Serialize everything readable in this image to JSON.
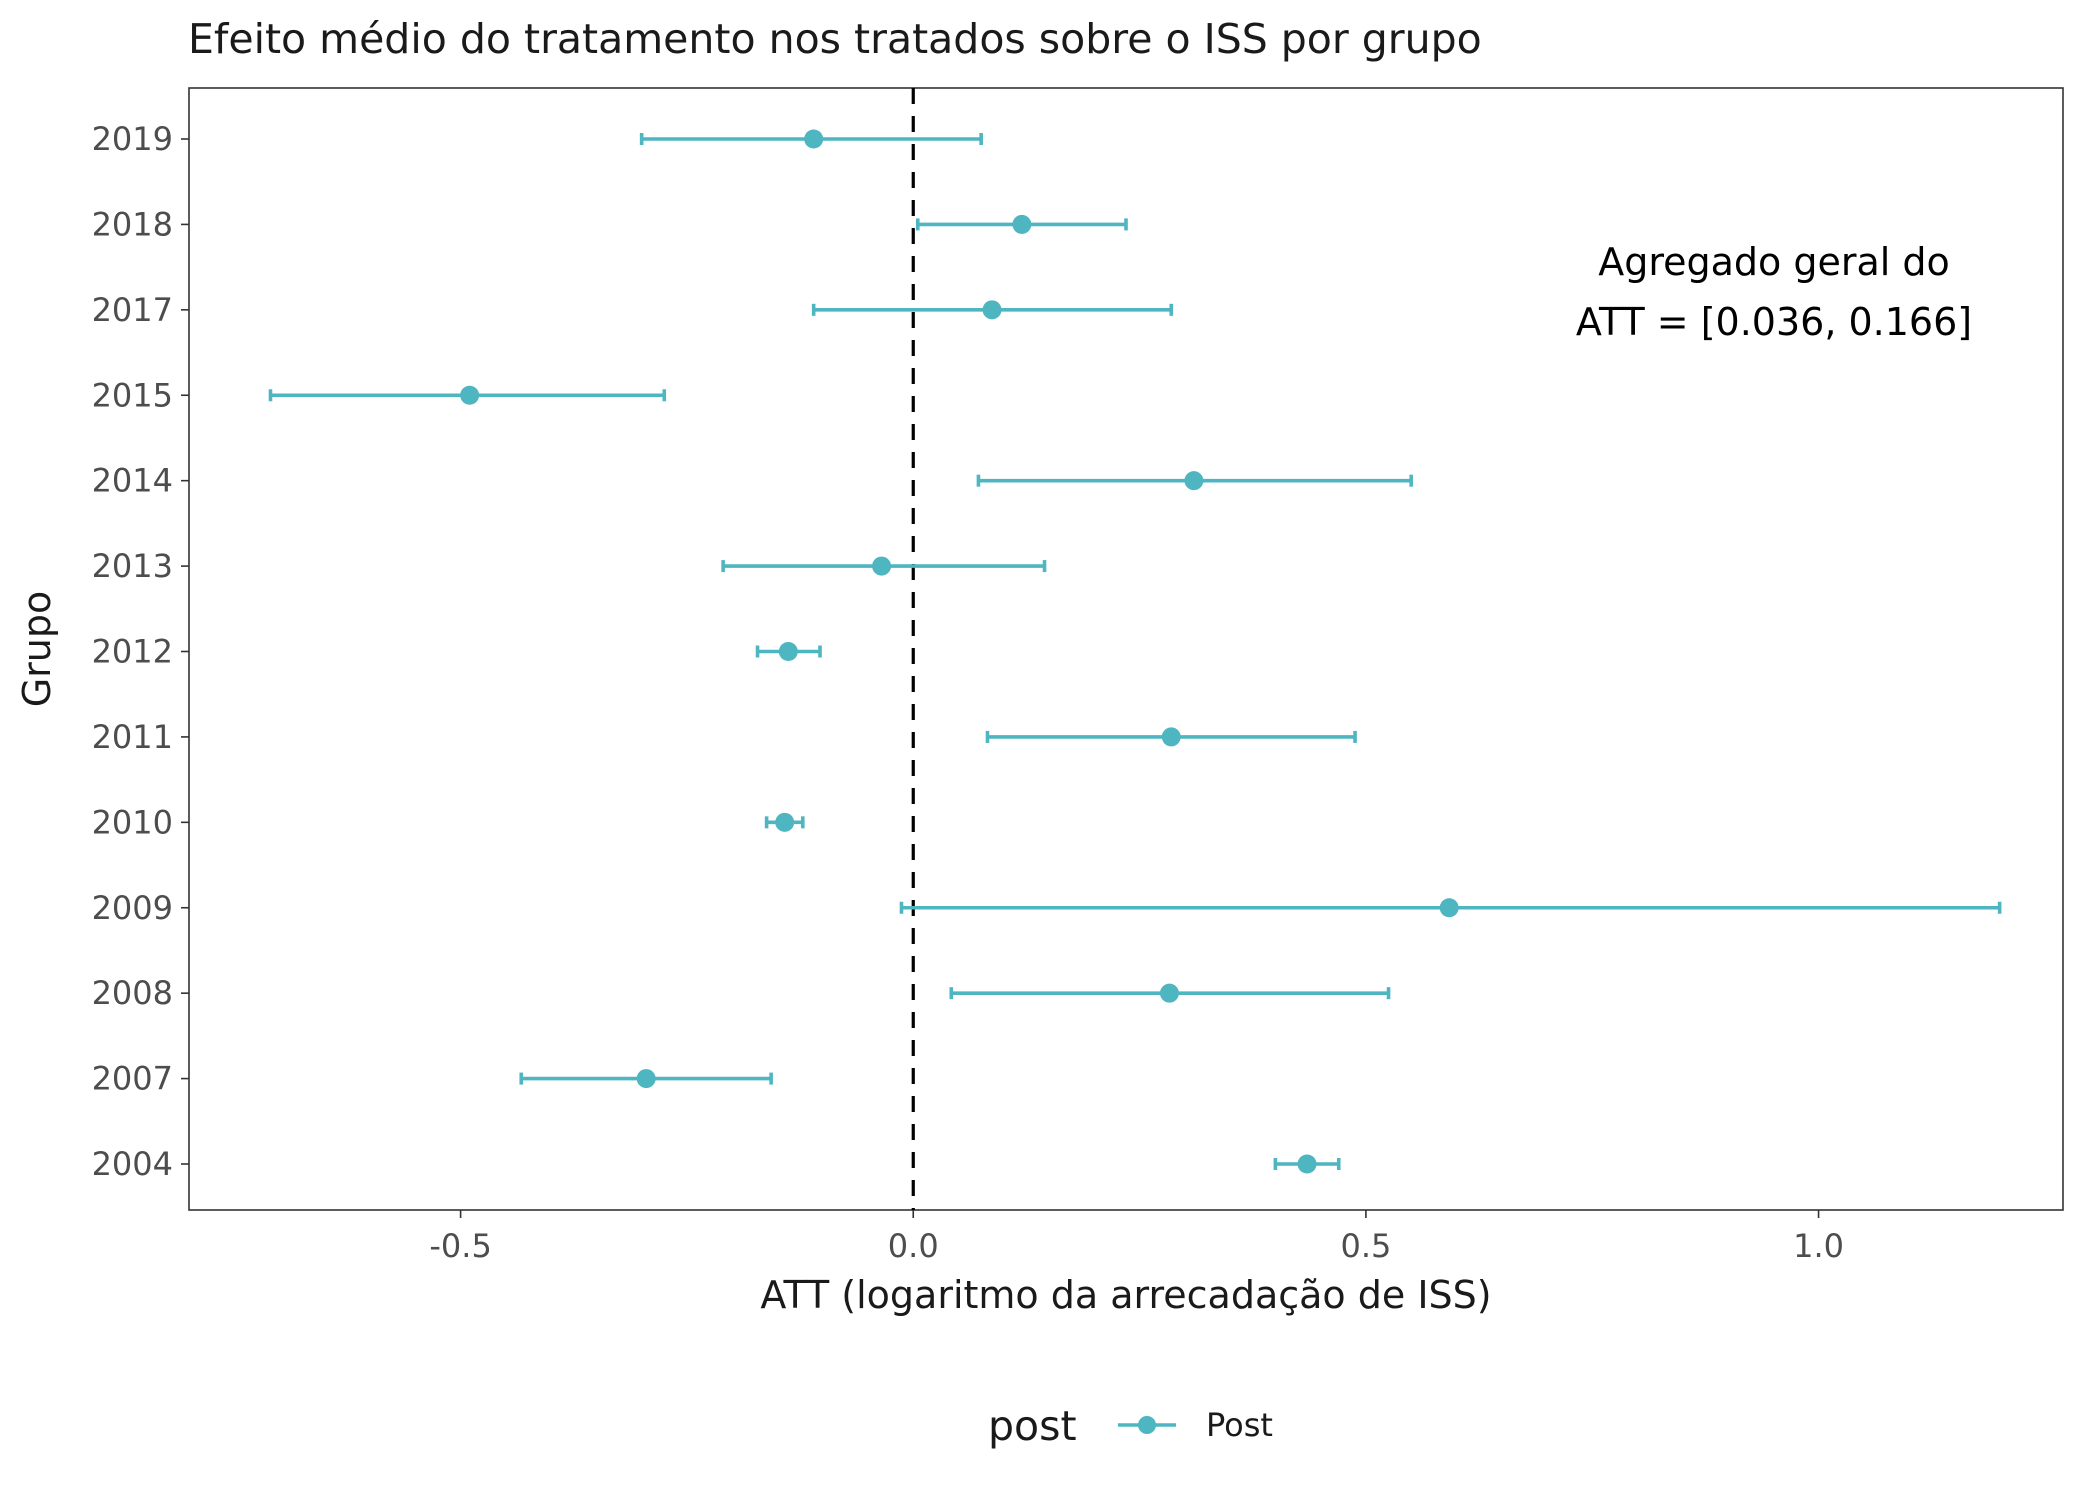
{
  "chart_data": {
    "type": "scatter",
    "title": "Efeito médio do tratamento nos tratados sobre o ISS por grupo",
    "xlabel": "ATT (logaritmo da arrecadação de ISS)",
    "ylabel": "Grupo",
    "xlim": [
      -0.8,
      1.27
    ],
    "x_ticks": [
      -0.5,
      0.0,
      0.5,
      1.0
    ],
    "x_tick_labels": [
      "-0.5",
      "0.0",
      "0.5",
      "1.0"
    ],
    "grid": false,
    "reference_line": {
      "x": 0,
      "style": "dashed",
      "color": "#000000"
    },
    "annotation": {
      "line1": "Agregado geral do",
      "line2": "ATT =  [0.036, 0.166]"
    },
    "legend": {
      "title": "post",
      "placement": "bottom",
      "entries": [
        "Post"
      ]
    },
    "series": [
      {
        "name": "Post",
        "color": "#4DB6C0",
        "points": [
          {
            "group": "2019",
            "att": -0.11,
            "lower": -0.3,
            "upper": 0.075
          },
          {
            "group": "2018",
            "att": 0.12,
            "lower": 0.005,
            "upper": 0.235
          },
          {
            "group": "2017",
            "att": 0.087,
            "lower": -0.11,
            "upper": 0.285
          },
          {
            "group": "2015",
            "att": -0.49,
            "lower": -0.71,
            "upper": -0.275
          },
          {
            "group": "2014",
            "att": 0.31,
            "lower": 0.072,
            "upper": 0.55
          },
          {
            "group": "2013",
            "att": -0.035,
            "lower": -0.21,
            "upper": 0.145
          },
          {
            "group": "2012",
            "att": -0.138,
            "lower": -0.172,
            "upper": -0.103
          },
          {
            "group": "2011",
            "att": 0.285,
            "lower": 0.082,
            "upper": 0.488
          },
          {
            "group": "2010",
            "att": -0.142,
            "lower": -0.162,
            "upper": -0.122
          },
          {
            "group": "2009",
            "att": 0.592,
            "lower": -0.013,
            "upper": 1.2
          },
          {
            "group": "2008",
            "att": 0.283,
            "lower": 0.042,
            "upper": 0.525
          },
          {
            "group": "2007",
            "att": -0.295,
            "lower": -0.433,
            "upper": -0.157
          },
          {
            "group": "2004",
            "att": 0.435,
            "lower": 0.4,
            "upper": 0.47
          }
        ]
      }
    ]
  }
}
